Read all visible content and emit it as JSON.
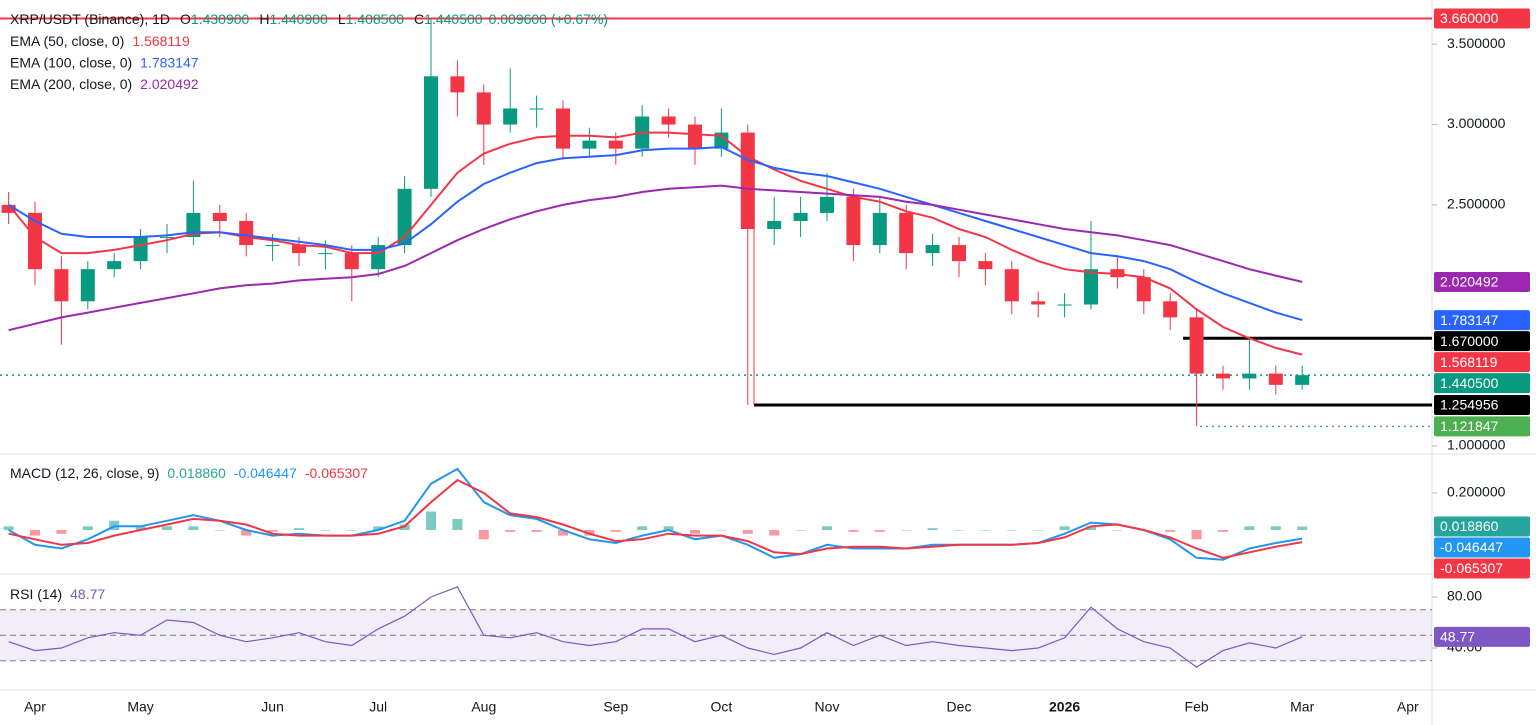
{
  "chart_data": [
    {
      "type": "candlestick",
      "title": "XRP/USDT (Binance), 1D",
      "ohlc": [
        {
          "name": "O",
          "text": "1.430900"
        },
        {
          "name": "H",
          "text": "1.440900"
        },
        {
          "name": "L",
          "text": "1.408500"
        },
        {
          "name": "C",
          "text": "1.440500"
        }
      ],
      "change": "0.009600 (+0.67%)",
      "categories": [
        null,
        "Apr",
        null,
        null,
        null,
        "May",
        null,
        null,
        null,
        null,
        "Jun",
        null,
        null,
        null,
        "Jul",
        null,
        null,
        null,
        "Aug",
        null,
        null,
        null,
        null,
        "Sep",
        null,
        null,
        null,
        "Oct",
        null,
        null,
        null,
        "Nov",
        null,
        null,
        null,
        null,
        "Dec",
        null,
        null,
        null,
        "2026",
        null,
        null,
        null,
        null,
        "Feb",
        null,
        null,
        null,
        "Mar",
        null,
        null,
        null,
        "Apr"
      ],
      "open": [
        2.5,
        2.45,
        2.1,
        1.9,
        2.1,
        2.15,
        2.3,
        2.3,
        2.45,
        2.4,
        2.25,
        2.25,
        2.2,
        2.2,
        2.1,
        2.25,
        2.6,
        3.3,
        3.2,
        3.0,
        3.1,
        3.1,
        2.85,
        2.9,
        2.85,
        3.05,
        3.0,
        2.85,
        2.95,
        2.35,
        2.4,
        2.45,
        2.55,
        2.25,
        2.45,
        2.2,
        2.25,
        2.15,
        2.1,
        1.9,
        1.88,
        1.88,
        2.1,
        2.05,
        1.9,
        1.8,
        1.45,
        1.42,
        1.45,
        1.38,
        null,
        null,
        null,
        null
      ],
      "high": [
        2.58,
        2.52,
        2.18,
        2.15,
        2.2,
        2.35,
        2.38,
        2.65,
        2.5,
        2.45,
        2.32,
        2.3,
        2.28,
        2.25,
        2.3,
        2.68,
        3.66,
        3.4,
        3.25,
        3.35,
        3.18,
        3.15,
        2.98,
        2.95,
        3.12,
        3.1,
        3.05,
        3.1,
        3.0,
        2.55,
        2.55,
        2.7,
        2.6,
        2.55,
        2.5,
        2.32,
        2.3,
        2.2,
        2.15,
        1.96,
        1.95,
        2.4,
        2.18,
        2.1,
        1.95,
        1.85,
        1.5,
        1.67,
        1.5,
        1.5,
        null,
        null,
        null,
        null
      ],
      "low": [
        2.38,
        2.0,
        1.63,
        1.85,
        2.05,
        2.1,
        2.2,
        2.25,
        2.3,
        2.18,
        2.15,
        2.12,
        2.1,
        1.9,
        2.05,
        2.2,
        2.55,
        3.05,
        2.75,
        2.95,
        2.98,
        2.78,
        2.8,
        2.75,
        2.8,
        2.92,
        2.75,
        2.8,
        1.255,
        2.25,
        2.3,
        2.4,
        2.15,
        2.2,
        2.1,
        2.12,
        2.05,
        2.0,
        1.82,
        1.8,
        1.8,
        1.85,
        1.98,
        1.82,
        1.72,
        1.1218,
        1.35,
        1.35,
        1.32,
        1.35,
        null,
        null,
        null,
        null
      ],
      "close": [
        2.45,
        2.1,
        1.9,
        2.1,
        2.15,
        2.3,
        2.3,
        2.45,
        2.4,
        2.25,
        2.25,
        2.2,
        2.2,
        2.1,
        2.25,
        2.6,
        3.3,
        3.2,
        3.0,
        3.1,
        3.1,
        2.85,
        2.9,
        2.85,
        3.05,
        3.0,
        2.85,
        2.95,
        2.35,
        2.4,
        2.45,
        2.55,
        2.25,
        2.45,
        2.2,
        2.25,
        2.15,
        2.1,
        1.9,
        1.88,
        1.88,
        2.1,
        2.05,
        1.9,
        1.8,
        1.45,
        1.42,
        1.45,
        1.38,
        1.4405,
        null,
        null,
        null,
        null
      ],
      "up_color": "#089981",
      "down_color": "#f23645",
      "series": [
        {
          "name": "EMA (50, close, 0)",
          "color": "#f23645",
          "values": [
            2.5,
            2.3,
            2.2,
            2.2,
            2.22,
            2.25,
            2.28,
            2.32,
            2.33,
            2.3,
            2.28,
            2.25,
            2.24,
            2.2,
            2.2,
            2.3,
            2.5,
            2.7,
            2.82,
            2.88,
            2.92,
            2.93,
            2.93,
            2.92,
            2.95,
            2.95,
            2.94,
            2.93,
            2.8,
            2.72,
            2.65,
            2.6,
            2.55,
            2.52,
            2.46,
            2.42,
            2.35,
            2.3,
            2.22,
            2.15,
            2.1,
            2.08,
            2.07,
            2.05,
            1.98,
            1.85,
            1.74,
            1.67,
            1.61,
            1.568119,
            null,
            null,
            null,
            null
          ]
        },
        {
          "name": "EMA (100, close, 0)",
          "color": "#2962ff",
          "values": [
            2.5,
            2.4,
            2.32,
            2.3,
            2.3,
            2.3,
            2.31,
            2.33,
            2.33,
            2.31,
            2.29,
            2.27,
            2.25,
            2.22,
            2.22,
            2.26,
            2.38,
            2.52,
            2.63,
            2.7,
            2.76,
            2.79,
            2.8,
            2.81,
            2.84,
            2.85,
            2.85,
            2.86,
            2.78,
            2.73,
            2.7,
            2.68,
            2.64,
            2.6,
            2.55,
            2.5,
            2.45,
            2.4,
            2.35,
            2.3,
            2.25,
            2.2,
            2.18,
            2.15,
            2.1,
            2.02,
            1.95,
            1.89,
            1.83,
            1.783147,
            null,
            null,
            null,
            null
          ]
        },
        {
          "name": "EMA (200, close, 0)",
          "color": "#9c27b0",
          "values": [
            1.72,
            1.76,
            1.8,
            1.83,
            1.86,
            1.89,
            1.92,
            1.95,
            1.98,
            2.0,
            2.01,
            2.03,
            2.04,
            2.05,
            2.07,
            2.12,
            2.2,
            2.28,
            2.35,
            2.41,
            2.46,
            2.5,
            2.53,
            2.55,
            2.58,
            2.6,
            2.61,
            2.62,
            2.6,
            2.59,
            2.58,
            2.57,
            2.56,
            2.55,
            2.52,
            2.5,
            2.47,
            2.44,
            2.41,
            2.38,
            2.35,
            2.33,
            2.31,
            2.28,
            2.25,
            2.2,
            2.15,
            2.1,
            2.06,
            2.020492,
            null,
            null,
            null,
            null
          ]
        }
      ],
      "levels": [
        {
          "value": 3.66,
          "label": "3.660000",
          "color": "#f23645",
          "style": "solid"
        },
        {
          "value": 1.67,
          "label": "1.670000",
          "color": "#000000",
          "style": "solid"
        },
        {
          "value": 1.254956,
          "label": "1.254956",
          "color": "#000000",
          "style": "solid"
        },
        {
          "value": 1.121847,
          "label": "1.121847",
          "color": "#4caf50",
          "style": "dotted"
        },
        {
          "value": 1.4405,
          "label": "1.440500",
          "color": "#089981",
          "style": "dotted"
        }
      ],
      "ylim": [
        0.956,
        3.775
      ],
      "yticks": [
        {
          "value": 3.5,
          "label": "3.500000"
        },
        {
          "value": 3.0,
          "label": "3.000000"
        },
        {
          "value": 2.5,
          "label": "2.500000"
        },
        {
          "value": 1.0,
          "label": "1.000000"
        }
      ]
    },
    {
      "type": "macd",
      "title": "MACD (12, 26, close, 9)",
      "histogram": {
        "color": "#26a69a",
        "negative_color": "#f7525f",
        "values": [
          0.02,
          -0.03,
          -0.02,
          0.02,
          0.05,
          0.02,
          0.02,
          0.02,
          0.0,
          -0.03,
          -0.01,
          0.01,
          0,
          0,
          0.02,
          0.03,
          0.1,
          0.06,
          -0.05,
          -0.01,
          -0.01,
          -0.03,
          -0.03,
          -0.01,
          0.02,
          0.02,
          -0.02,
          0,
          -0.02,
          -0.03,
          0,
          0.02,
          -0.01,
          -0.01,
          0,
          0.01,
          0,
          0,
          0,
          0,
          0.02,
          0.02,
          0,
          0,
          -0.01,
          -0.05,
          -0.01,
          0.02,
          0.02,
          0.01886,
          null,
          null,
          null,
          null
        ],
        "value_labels": [
          null,
          null,
          null,
          null,
          null,
          null,
          null,
          null,
          null,
          null,
          null,
          null,
          null,
          null,
          null,
          null,
          null,
          null,
          null,
          null,
          null,
          null,
          null,
          null,
          null,
          null,
          null,
          null,
          null,
          null,
          null,
          null,
          null,
          null,
          null,
          null,
          null,
          null,
          null,
          null,
          null,
          null,
          null,
          null,
          null,
          null,
          null,
          null,
          null,
          "0.018860",
          null,
          null,
          null,
          null
        ]
      },
      "series": [
        {
          "color": "#2196f3",
          "values": [
            0.0,
            -0.08,
            -0.1,
            -0.05,
            0.02,
            0.02,
            0.05,
            0.08,
            0.05,
            0.0,
            -0.03,
            -0.02,
            -0.03,
            -0.03,
            0.0,
            0.05,
            0.25,
            0.33,
            0.15,
            0.08,
            0.06,
            0.0,
            -0.05,
            -0.07,
            -0.03,
            0.0,
            -0.05,
            -0.03,
            -0.08,
            -0.15,
            -0.13,
            -0.08,
            -0.1,
            -0.1,
            -0.1,
            -0.08,
            -0.08,
            -0.08,
            -0.08,
            -0.07,
            -0.02,
            0.04,
            0.03,
            0.0,
            -0.05,
            -0.15,
            -0.16,
            -0.1,
            -0.07,
            -0.046447,
            null,
            null,
            null,
            null
          ]
        },
        {
          "color": "#f23645",
          "values": [
            -0.02,
            -0.05,
            -0.08,
            -0.07,
            -0.03,
            0.0,
            0.03,
            0.06,
            0.05,
            0.03,
            -0.02,
            -0.03,
            -0.03,
            -0.03,
            -0.02,
            0.02,
            0.15,
            0.27,
            0.2,
            0.09,
            0.07,
            0.03,
            -0.02,
            -0.06,
            -0.05,
            -0.02,
            -0.03,
            -0.03,
            -0.06,
            -0.12,
            -0.13,
            -0.1,
            -0.09,
            -0.09,
            -0.1,
            -0.09,
            -0.08,
            -0.08,
            -0.08,
            -0.07,
            -0.04,
            0.02,
            0.03,
            0.0,
            -0.04,
            -0.1,
            -0.15,
            -0.12,
            -0.09,
            -0.065307,
            null,
            null,
            null,
            null
          ]
        }
      ],
      "ylim": [
        -0.232,
        0.405
      ],
      "yticks": [
        {
          "value": 0.2,
          "label": "0.200000"
        }
      ]
    },
    {
      "type": "rsi",
      "title": "RSI (14)",
      "series": [
        {
          "color": "#7e57c2",
          "values": [
            45,
            38,
            40,
            48,
            52,
            50,
            62,
            60,
            50,
            45,
            48,
            52,
            45,
            42,
            55,
            65,
            80,
            88,
            50,
            48,
            52,
            45,
            42,
            45,
            55,
            55,
            45,
            50,
            40,
            35,
            40,
            52,
            42,
            50,
            42,
            45,
            42,
            40,
            38,
            40,
            48,
            72,
            55,
            45,
            40,
            25,
            38,
            44,
            40,
            48.77,
            null,
            null,
            null,
            null
          ]
        }
      ],
      "bands": [
        70,
        50,
        30
      ],
      "ylim": [
        7.06,
        97.3
      ],
      "yticks": [
        {
          "value": 80,
          "label": "80.00"
        },
        {
          "value": 40,
          "label": "40.00"
        }
      ]
    }
  ]
}
